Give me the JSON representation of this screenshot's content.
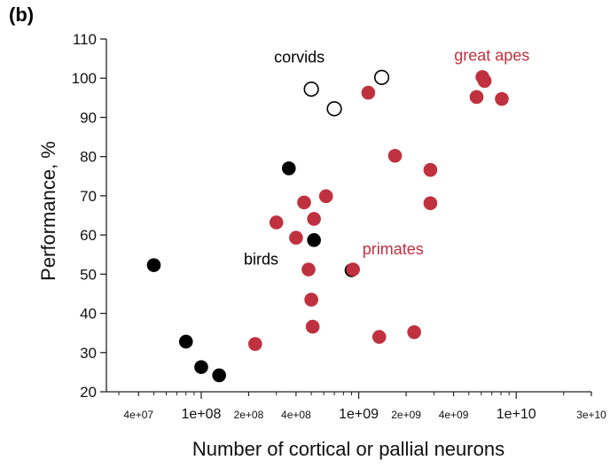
{
  "panel_label": "(b)",
  "chart_data": {
    "type": "scatter",
    "title": "",
    "xlabel": "Number of cortical or pallial neurons",
    "ylabel": "Performance, %",
    "x_scale": "log",
    "xlim": [
      25000000,
      30000000000
    ],
    "ylim": [
      20,
      110
    ],
    "x_ticks": [
      {
        "value": 40000000,
        "label": "4e+07",
        "major": false
      },
      {
        "value": 100000000,
        "label": "1e+08",
        "major": true
      },
      {
        "value": 200000000,
        "label": "2e+08",
        "major": false
      },
      {
        "value": 400000000,
        "label": "4e+08",
        "major": false
      },
      {
        "value": 1000000000,
        "label": "1e+09",
        "major": true
      },
      {
        "value": 2000000000,
        "label": "2e+09",
        "major": false
      },
      {
        "value": 4000000000,
        "label": "4e+09",
        "major": false
      },
      {
        "value": 10000000000,
        "label": "1e+10",
        "major": true
      },
      {
        "value": 30000000000,
        "label": "3e+10",
        "major": false
      }
    ],
    "y_ticks": [
      20,
      30,
      40,
      50,
      60,
      70,
      80,
      90,
      100,
      110
    ],
    "grid": false,
    "legend": "none",
    "series": [
      {
        "label": "birds",
        "style": "filled",
        "color": "#000000",
        "points": [
          {
            "x": 50000000,
            "y": 52.3
          },
          {
            "x": 80000000,
            "y": 32.8
          },
          {
            "x": 100000000,
            "y": 26.3
          },
          {
            "x": 130000000,
            "y": 24.2
          },
          {
            "x": 360000000,
            "y": 77
          },
          {
            "x": 520000000,
            "y": 58.7
          },
          {
            "x": 900000000,
            "y": 51
          }
        ]
      },
      {
        "label": "corvids",
        "style": "open",
        "color": "#000000",
        "points": [
          {
            "x": 500000000,
            "y": 97.2
          },
          {
            "x": 700000000,
            "y": 92.2
          },
          {
            "x": 1400000000,
            "y": 100.2
          }
        ]
      },
      {
        "label": "primates",
        "style": "filled",
        "color": "#c0313f",
        "points": [
          {
            "x": 220000000,
            "y": 32.2
          },
          {
            "x": 300000000,
            "y": 63.2
          },
          {
            "x": 400000000,
            "y": 59.3
          },
          {
            "x": 450000000,
            "y": 68.3
          },
          {
            "x": 480000000,
            "y": 51.2
          },
          {
            "x": 500000000,
            "y": 43.5
          },
          {
            "x": 510000000,
            "y": 36.6
          },
          {
            "x": 520000000,
            "y": 64.1
          },
          {
            "x": 620000000,
            "y": 69.9
          },
          {
            "x": 920000000,
            "y": 51.2
          },
          {
            "x": 1150000000,
            "y": 96.3
          },
          {
            "x": 1350000000,
            "y": 34
          },
          {
            "x": 1700000000,
            "y": 80.2
          },
          {
            "x": 2250000000,
            "y": 35.2
          },
          {
            "x": 2850000000,
            "y": 76.6
          },
          {
            "x": 2850000000,
            "y": 68.1
          }
        ]
      },
      {
        "label": "great apes",
        "style": "filled",
        "color": "#c0313f",
        "points": [
          {
            "x": 5600000000,
            "y": 95.2
          },
          {
            "x": 6100000000,
            "y": 100.3
          },
          {
            "x": 6300000000,
            "y": 99.3
          },
          {
            "x": 8100000000,
            "y": 94.7
          }
        ]
      }
    ],
    "annotations": [
      {
        "text": "corvids",
        "color": "#000000",
        "x": 420000000,
        "y": 104
      },
      {
        "text": "great apes",
        "color": "#c0313f",
        "x": 7000000000,
        "y": 104.5
      },
      {
        "text": "birds",
        "color": "#000000",
        "x": 240000000,
        "y": 52.5
      },
      {
        "text": "primates",
        "color": "#c0313f",
        "x": 1650000000,
        "y": 55
      }
    ]
  }
}
